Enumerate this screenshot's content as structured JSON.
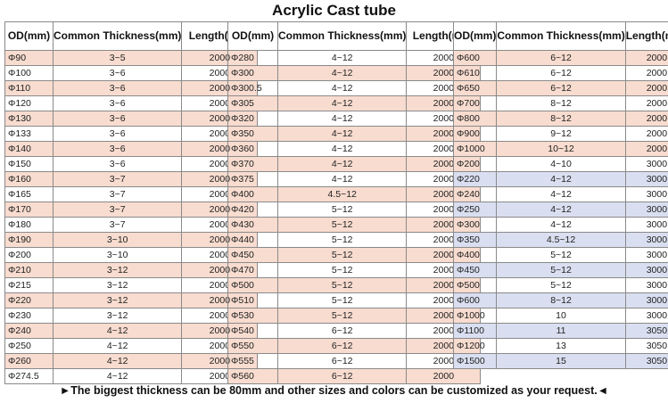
{
  "title": "Acrylic Cast tube",
  "headers": {
    "od": "OD(mm)",
    "thickness": "Common Thickness(mm)",
    "length": "Length(mm)"
  },
  "highlight_colors": {
    "peach": "#f8dccf",
    "blue": "#d9dff0"
  },
  "tables": [
    {
      "rows": [
        {
          "od": "Φ90",
          "thickness": "3~5",
          "length": "2000",
          "hl": "peach"
        },
        {
          "od": "Φ100",
          "thickness": "3~6",
          "length": "2000",
          "hl": ""
        },
        {
          "od": "Φ110",
          "thickness": "3~6",
          "length": "2000",
          "hl": "peach"
        },
        {
          "od": "Φ120",
          "thickness": "3~6",
          "length": "2000",
          "hl": ""
        },
        {
          "od": "Φ130",
          "thickness": "3~6",
          "length": "2000",
          "hl": "peach"
        },
        {
          "od": "Φ133",
          "thickness": "3~6",
          "length": "2000",
          "hl": ""
        },
        {
          "od": "Φ140",
          "thickness": "3~6",
          "length": "2000",
          "hl": "peach"
        },
        {
          "od": "Φ150",
          "thickness": "3~6",
          "length": "2000",
          "hl": ""
        },
        {
          "od": "Φ160",
          "thickness": "3~7",
          "length": "2000",
          "hl": "peach"
        },
        {
          "od": "Φ165",
          "thickness": "3~7",
          "length": "2000",
          "hl": ""
        },
        {
          "od": "Φ170",
          "thickness": "3~7",
          "length": "2000",
          "hl": "peach"
        },
        {
          "od": "Φ180",
          "thickness": "3~7",
          "length": "2000",
          "hl": ""
        },
        {
          "od": "Φ190",
          "thickness": "3~10",
          "length": "2000",
          "hl": "peach"
        },
        {
          "od": "Φ200",
          "thickness": "3~10",
          "length": "2000",
          "hl": ""
        },
        {
          "od": "Φ210",
          "thickness": "3~12",
          "length": "2000",
          "hl": "peach"
        },
        {
          "od": "Φ215",
          "thickness": "3~12",
          "length": "2000",
          "hl": ""
        },
        {
          "od": "Φ220",
          "thickness": "3~12",
          "length": "2000",
          "hl": "peach"
        },
        {
          "od": "Φ230",
          "thickness": "3~12",
          "length": "2000",
          "hl": ""
        },
        {
          "od": "Φ240",
          "thickness": "4~12",
          "length": "2000",
          "hl": "peach"
        },
        {
          "od": "Φ250",
          "thickness": "4~12",
          "length": "2000",
          "hl": ""
        },
        {
          "od": "Φ260",
          "thickness": "4~12",
          "length": "2000",
          "hl": "peach"
        },
        {
          "od": "Φ274.5",
          "thickness": "4~12",
          "length": "2000",
          "hl": ""
        }
      ]
    },
    {
      "rows": [
        {
          "od": "Φ280",
          "thickness": "4~12",
          "length": "2000",
          "hl": ""
        },
        {
          "od": "Φ300",
          "thickness": "4~12",
          "length": "2000",
          "hl": "peach"
        },
        {
          "od": "Φ300.5",
          "thickness": "4~12",
          "length": "2000",
          "hl": ""
        },
        {
          "od": "Φ305",
          "thickness": "4~12",
          "length": "2000",
          "hl": "peach"
        },
        {
          "od": "Φ320",
          "thickness": "4~12",
          "length": "2000",
          "hl": ""
        },
        {
          "od": "Φ350",
          "thickness": "4~12",
          "length": "2000",
          "hl": "peach"
        },
        {
          "od": "Φ360",
          "thickness": "4~12",
          "length": "2000",
          "hl": ""
        },
        {
          "od": "Φ370",
          "thickness": "4~12",
          "length": "2000",
          "hl": "peach"
        },
        {
          "od": "Φ375",
          "thickness": "4~12",
          "length": "2000",
          "hl": ""
        },
        {
          "od": "Φ400",
          "thickness": "4.5~12",
          "length": "2000",
          "hl": "peach"
        },
        {
          "od": "Φ420",
          "thickness": "5~12",
          "length": "2000",
          "hl": ""
        },
        {
          "od": "Φ430",
          "thickness": "5~12",
          "length": "2000",
          "hl": "peach"
        },
        {
          "od": "Φ440",
          "thickness": "5~12",
          "length": "2000",
          "hl": ""
        },
        {
          "od": "Φ450",
          "thickness": "5~12",
          "length": "2000",
          "hl": "peach"
        },
        {
          "od": "Φ470",
          "thickness": "5~12",
          "length": "2000",
          "hl": ""
        },
        {
          "od": "Φ500",
          "thickness": "5~12",
          "length": "2000",
          "hl": "peach"
        },
        {
          "od": "Φ510",
          "thickness": "5~12",
          "length": "2000",
          "hl": ""
        },
        {
          "od": "Φ530",
          "thickness": "5~12",
          "length": "2000",
          "hl": "peach"
        },
        {
          "od": "Φ540",
          "thickness": "6~12",
          "length": "2000",
          "hl": ""
        },
        {
          "od": "Φ550",
          "thickness": "6~12",
          "length": "2000",
          "hl": "peach"
        },
        {
          "od": "Φ555",
          "thickness": "6~12",
          "length": "2000",
          "hl": ""
        },
        {
          "od": "Φ560",
          "thickness": "6~12",
          "length": "2000",
          "hl": "peach"
        }
      ]
    },
    {
      "rows": [
        {
          "od": "Φ600",
          "thickness": "6~12",
          "length": "2000",
          "hl": "peach"
        },
        {
          "od": "Φ610",
          "thickness": "6~12",
          "length": "2000",
          "hl": ""
        },
        {
          "od": "Φ650",
          "thickness": "6~12",
          "length": "2000",
          "hl": "peach"
        },
        {
          "od": "Φ700",
          "thickness": "8~12",
          "length": "2000",
          "hl": ""
        },
        {
          "od": "Φ800",
          "thickness": "8~12",
          "length": "2000",
          "hl": "peach"
        },
        {
          "od": "Φ900",
          "thickness": "9~12",
          "length": "2000",
          "hl": ""
        },
        {
          "od": "Φ1000",
          "thickness": "10~12",
          "length": "2000",
          "hl": "peach"
        },
        {
          "od": "Φ200",
          "thickness": "4~10",
          "length": "3000",
          "hl": ""
        },
        {
          "od": "Φ220",
          "thickness": "4~12",
          "length": "3000",
          "hl": "blue"
        },
        {
          "od": "Φ240",
          "thickness": "4~12",
          "length": "3000",
          "hl": ""
        },
        {
          "od": "Φ250",
          "thickness": "4~12",
          "length": "3000",
          "hl": "blue"
        },
        {
          "od": "Φ300",
          "thickness": "4~12",
          "length": "3000",
          "hl": ""
        },
        {
          "od": "Φ350",
          "thickness": "4.5~12",
          "length": "3000",
          "hl": "blue"
        },
        {
          "od": "Φ400",
          "thickness": "5~12",
          "length": "3000",
          "hl": ""
        },
        {
          "od": "Φ450",
          "thickness": "5~12",
          "length": "3000",
          "hl": "blue"
        },
        {
          "od": "Φ500",
          "thickness": "5~12",
          "length": "3000",
          "hl": ""
        },
        {
          "od": "Φ600",
          "thickness": "8~12",
          "length": "3000",
          "hl": "blue"
        },
        {
          "od": "Φ1000",
          "thickness": "10",
          "length": "3000",
          "hl": ""
        },
        {
          "od": "Φ1100",
          "thickness": "11",
          "length": "3050",
          "hl": "blue"
        },
        {
          "od": "Φ1200",
          "thickness": "13",
          "length": "3050",
          "hl": ""
        },
        {
          "od": "Φ1500",
          "thickness": "15",
          "length": "3050",
          "hl": "blue"
        }
      ]
    }
  ],
  "footnote": "►The biggest thickness can be 80mm and other sizes and colors can be customized as your request.◄"
}
